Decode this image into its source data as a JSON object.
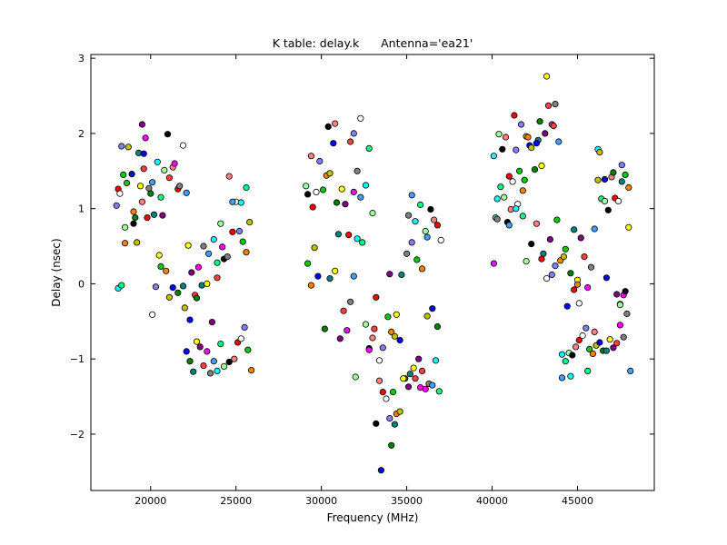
{
  "chart_data": {
    "type": "scatter",
    "title": "K table: delay.k      Antenna='ea21'",
    "xlabel": "Frequency (MHz)",
    "ylabel": "Delay (nsec)",
    "xlim": [
      16500,
      49500
    ],
    "ylim": [
      -2.75,
      3.05
    ],
    "xticks": [
      20000,
      25000,
      30000,
      35000,
      40000,
      45000
    ],
    "xtick_labels": [
      "20000",
      "25000",
      "30000",
      "35000",
      "40000",
      "45000"
    ],
    "yticks": [
      -2,
      -1,
      0,
      1,
      2,
      3
    ],
    "ytick_labels": [
      "−2",
      "−1",
      "0",
      "1",
      "2",
      "3"
    ],
    "grid": false,
    "legend": "none",
    "marker": "circle",
    "palette": [
      "#ff0000",
      "#00cc00",
      "#0000ff",
      "#ffff00",
      "#ff00ff",
      "#00ffff",
      "#000000",
      "#ffffff",
      "#ff8000",
      "#008000",
      "#800080",
      "#808080",
      "#00ff80",
      "#ff8080",
      "#8080ff",
      "#c0c000",
      "#008080",
      "#ff4040",
      "#40a0ff",
      "#a0ffa0"
    ],
    "points": [
      [
        18100,
        1.26
      ],
      [
        18200,
        1.2
      ],
      [
        18300,
        1.83
      ],
      [
        18400,
        1.45
      ],
      [
        18500,
        0.54
      ],
      [
        18700,
        1.82
      ],
      [
        18900,
        1.46
      ],
      [
        19100,
        0.88
      ],
      [
        19300,
        1.74
      ],
      [
        19400,
        1.3
      ],
      [
        19500,
        2.12
      ],
      [
        19600,
        1.53
      ],
      [
        19700,
        1.94
      ],
      [
        19900,
        1.27
      ],
      [
        20100,
        1.35
      ],
      [
        20400,
        1.62
      ],
      [
        20600,
        1.15
      ],
      [
        20800,
        1.51
      ],
      [
        21000,
        1.99
      ],
      [
        21300,
        1.55
      ],
      [
        21600,
        1.26
      ],
      [
        21900,
        1.84
      ],
      [
        18000,
        1.04
      ],
      [
        18600,
        1.34
      ],
      [
        19000,
        0.96
      ],
      [
        19200,
        0.55
      ],
      [
        19600,
        1.73
      ],
      [
        20000,
        1.2
      ],
      [
        20200,
        0.92
      ],
      [
        20500,
        0.38
      ],
      [
        20700,
        0.91
      ],
      [
        21100,
        1.41
      ],
      [
        21400,
        1.6
      ],
      [
        21700,
        1.3
      ],
      [
        22100,
        1.21
      ],
      [
        18100,
        -0.06
      ],
      [
        18300,
        -0.02
      ],
      [
        18500,
        0.75
      ],
      [
        19000,
        0.8
      ],
      [
        19500,
        1.09
      ],
      [
        19800,
        0.88
      ],
      [
        20100,
        -0.41
      ],
      [
        20300,
        -0.04
      ],
      [
        20600,
        0.23
      ],
      [
        20900,
        0.17
      ],
      [
        21100,
        -0.18
      ],
      [
        21300,
        -0.05
      ],
      [
        21600,
        -0.12
      ],
      [
        21900,
        -0.03
      ],
      [
        22200,
        0.51
      ],
      [
        22400,
        0.15
      ],
      [
        22600,
        -0.15
      ],
      [
        22800,
        0.22
      ],
      [
        23100,
        0.5
      ],
      [
        23400,
        0.4
      ],
      [
        23700,
        0.59
      ],
      [
        23900,
        0.28
      ],
      [
        24100,
        0.8
      ],
      [
        24300,
        0.33
      ],
      [
        24600,
        1.43
      ],
      [
        24800,
        0.69
      ],
      [
        25000,
        1.09
      ],
      [
        25200,
        0.7
      ],
      [
        25400,
        0.56
      ],
      [
        25600,
        0.42
      ],
      [
        25800,
        0.82
      ],
      [
        22100,
        -0.9
      ],
      [
        22300,
        -1.03
      ],
      [
        22500,
        -1.17
      ],
      [
        22700,
        -0.77
      ],
      [
        22900,
        -0.84
      ],
      [
        23100,
        -1.09
      ],
      [
        23300,
        -0.9
      ],
      [
        23500,
        -1.19
      ],
      [
        23700,
        -1.03
      ],
      [
        23900,
        -1.16
      ],
      [
        24100,
        -0.8
      ],
      [
        24300,
        -1.1
      ],
      [
        24600,
        -1.04
      ],
      [
        24900,
        -1.0
      ],
      [
        25100,
        -0.78
      ],
      [
        25300,
        -0.73
      ],
      [
        25500,
        -0.58
      ],
      [
        25700,
        -0.88
      ],
      [
        25900,
        -1.15
      ],
      [
        22000,
        -0.32
      ],
      [
        22300,
        -0.48
      ],
      [
        22700,
        -0.19
      ],
      [
        23000,
        -0.02
      ],
      [
        23300,
        0.0
      ],
      [
        23600,
        -0.51
      ],
      [
        23900,
        0.08
      ],
      [
        24200,
        0.49
      ],
      [
        24500,
        0.36
      ],
      [
        24800,
        1.09
      ],
      [
        25300,
        1.08
      ],
      [
        25600,
        1.28
      ],
      [
        29100,
        1.3
      ],
      [
        29200,
        1.19
      ],
      [
        29400,
        1.7
      ],
      [
        29500,
        1.02
      ],
      [
        29700,
        1.22
      ],
      [
        29900,
        1.63
      ],
      [
        30100,
        1.25
      ],
      [
        30300,
        1.44
      ],
      [
        30500,
        1.47
      ],
      [
        30700,
        1.87
      ],
      [
        30900,
        1.08
      ],
      [
        31000,
        0.66
      ],
      [
        31200,
        1.26
      ],
      [
        31400,
        1.06
      ],
      [
        31700,
        1.89
      ],
      [
        31900,
        1.22
      ],
      [
        32100,
        1.5
      ],
      [
        32300,
        1.15
      ],
      [
        32600,
        1.31
      ],
      [
        32800,
        1.8
      ],
      [
        33000,
        0.94
      ],
      [
        30400,
        2.09
      ],
      [
        30800,
        2.13
      ],
      [
        31600,
        0.65
      ],
      [
        32300,
        2.2
      ],
      [
        31900,
        2.0
      ],
      [
        29200,
        0.27
      ],
      [
        29400,
        -0.02
      ],
      [
        29600,
        0.48
      ],
      [
        29800,
        0.1
      ],
      [
        30200,
        -0.6
      ],
      [
        30500,
        0.07
      ],
      [
        30800,
        0.17
      ],
      [
        31100,
        -0.73
      ],
      [
        31300,
        -0.36
      ],
      [
        31500,
        -0.62
      ],
      [
        31700,
        -0.24
      ],
      [
        31900,
        0.1
      ],
      [
        32100,
        0.6
      ],
      [
        32400,
        0.55
      ],
      [
        32600,
        -0.54
      ],
      [
        32800,
        -0.86
      ],
      [
        33000,
        -0.72
      ],
      [
        33200,
        -0.18
      ],
      [
        33400,
        -1.02
      ],
      [
        33600,
        -0.85
      ],
      [
        33900,
        -0.44
      ],
      [
        34100,
        -0.64
      ],
      [
        34300,
        -0.7
      ],
      [
        34600,
        -0.75
      ],
      [
        34900,
        -1.26
      ],
      [
        35200,
        -1.2
      ],
      [
        35400,
        -1.12
      ],
      [
        35700,
        -1.0
      ],
      [
        35900,
        -1.16
      ],
      [
        36100,
        -1.4
      ],
      [
        36300,
        -1.33
      ],
      [
        36500,
        -1.35
      ],
      [
        36700,
        -1.02
      ],
      [
        36900,
        -1.43
      ],
      [
        32000,
        -1.24
      ],
      [
        33200,
        -1.86
      ],
      [
        33400,
        -1.29
      ],
      [
        33600,
        -1.44
      ],
      [
        33800,
        -1.53
      ],
      [
        34000,
        -1.79
      ],
      [
        34200,
        -1.44
      ],
      [
        34400,
        -1.73
      ],
      [
        34600,
        -1.7
      ],
      [
        33500,
        -2.48
      ],
      [
        34100,
        -2.15
      ],
      [
        34300,
        -1.87
      ],
      [
        34800,
        -1.26
      ],
      [
        35100,
        -1.37
      ],
      [
        35500,
        -1.26
      ],
      [
        35800,
        -1.38
      ],
      [
        35100,
        0.91
      ],
      [
        35300,
        1.18
      ],
      [
        35500,
        0.83
      ],
      [
        35800,
        1.05
      ],
      [
        36100,
        0.7
      ],
      [
        36400,
        0.99
      ],
      [
        36600,
        0.85
      ],
      [
        36800,
        0.78
      ],
      [
        37000,
        0.58
      ],
      [
        35300,
        0.55
      ],
      [
        35600,
        0.32
      ],
      [
        35900,
        0.2
      ],
      [
        36200,
        -0.43
      ],
      [
        36500,
        -0.33
      ],
      [
        36800,
        -0.57
      ],
      [
        34700,
        0.12
      ],
      [
        34400,
        -0.41
      ],
      [
        34000,
        0.13
      ],
      [
        33100,
        -0.6
      ],
      [
        32800,
        -0.88
      ],
      [
        35000,
        0.4
      ],
      [
        36200,
        0.62
      ],
      [
        40100,
        1.7
      ],
      [
        40200,
        0.88
      ],
      [
        40400,
        1.99
      ],
      [
        40600,
        1.79
      ],
      [
        40800,
        1.95
      ],
      [
        41000,
        1.43
      ],
      [
        41200,
        1.36
      ],
      [
        41400,
        1.78
      ],
      [
        41600,
        1.5
      ],
      [
        41800,
        1.24
      ],
      [
        42000,
        1.96
      ],
      [
        42200,
        1.84
      ],
      [
        42500,
        1.52
      ],
      [
        42700,
        1.91
      ],
      [
        42900,
        1.57
      ],
      [
        43100,
        2.0
      ],
      [
        43300,
        2.37
      ],
      [
        43500,
        2.12
      ],
      [
        43700,
        2.39
      ],
      [
        43900,
        1.89
      ],
      [
        40300,
        1.13
      ],
      [
        40500,
        1.29
      ],
      [
        40700,
        1.15
      ],
      [
        40900,
        0.82
      ],
      [
        41100,
        0.99
      ],
      [
        41300,
        2.24
      ],
      [
        41500,
        1.06
      ],
      [
        41700,
        2.12
      ],
      [
        41900,
        1.38
      ],
      [
        42100,
        1.95
      ],
      [
        42300,
        1.81
      ],
      [
        42600,
        1.87
      ],
      [
        42800,
        2.16
      ],
      [
        43000,
        0.4
      ],
      [
        43200,
        2.76
      ],
      [
        43400,
        0.59
      ],
      [
        43600,
        2.1
      ],
      [
        40100,
        0.27
      ],
      [
        40300,
        0.86
      ],
      [
        41000,
        0.78
      ],
      [
        41400,
        1.0
      ],
      [
        41800,
        0.9
      ],
      [
        42000,
        0.3
      ],
      [
        42300,
        0.53
      ],
      [
        42600,
        0.8
      ],
      [
        42900,
        0.33
      ],
      [
        43200,
        0.07
      ],
      [
        43500,
        0.12
      ],
      [
        43800,
        0.85
      ],
      [
        44000,
        0.31
      ],
      [
        44200,
        0.36
      ],
      [
        44400,
        -0.3
      ],
      [
        44600,
        0.14
      ],
      [
        44800,
        0.72
      ],
      [
        45000,
        0.05
      ],
      [
        45200,
        0.61
      ],
      [
        45400,
        0.36
      ],
      [
        45600,
        -0.05
      ],
      [
        45800,
        0.22
      ],
      [
        46000,
        0.73
      ],
      [
        46200,
        1.79
      ],
      [
        46400,
        1.13
      ],
      [
        46600,
        1.1
      ],
      [
        46800,
        0.98
      ],
      [
        47000,
        1.42
      ],
      [
        47200,
        1.14
      ],
      [
        47400,
        1.1
      ],
      [
        47600,
        1.58
      ],
      [
        47800,
        1.45
      ],
      [
        48000,
        1.28
      ],
      [
        46200,
        1.38
      ],
      [
        46600,
        1.39
      ],
      [
        47100,
        1.48
      ],
      [
        47600,
        1.36
      ],
      [
        48000,
        0.75
      ],
      [
        47300,
        -0.14
      ],
      [
        47500,
        -0.27
      ],
      [
        47700,
        -0.15
      ],
      [
        47900,
        -0.4
      ],
      [
        48100,
        -1.16
      ],
      [
        44100,
        -0.94
      ],
      [
        44300,
        -1.03
      ],
      [
        44500,
        -0.92
      ],
      [
        44700,
        -0.95
      ],
      [
        44900,
        -0.84
      ],
      [
        45100,
        -0.75
      ],
      [
        45300,
        -0.69
      ],
      [
        45500,
        -0.59
      ],
      [
        45700,
        -0.87
      ],
      [
        45900,
        -0.93
      ],
      [
        46100,
        -0.82
      ],
      [
        46300,
        -0.78
      ],
      [
        46500,
        -0.89
      ],
      [
        46700,
        -0.89
      ],
      [
        46900,
        -0.74
      ],
      [
        47100,
        -0.85
      ],
      [
        47300,
        -0.79
      ],
      [
        47500,
        -0.55
      ],
      [
        47700,
        -0.71
      ],
      [
        44100,
        -1.25
      ],
      [
        44600,
        -1.23
      ],
      [
        45600,
        -1.16
      ],
      [
        47500,
        -0.28
      ],
      [
        47800,
        -0.1
      ],
      [
        46000,
        -0.64
      ],
      [
        44800,
        -0.08
      ],
      [
        45100,
        -0.26
      ],
      [
        43700,
        0.24
      ],
      [
        44300,
        0.46
      ],
      [
        45000,
        -0.01
      ],
      [
        46300,
        1.75
      ],
      [
        46700,
        0.08
      ]
    ]
  }
}
